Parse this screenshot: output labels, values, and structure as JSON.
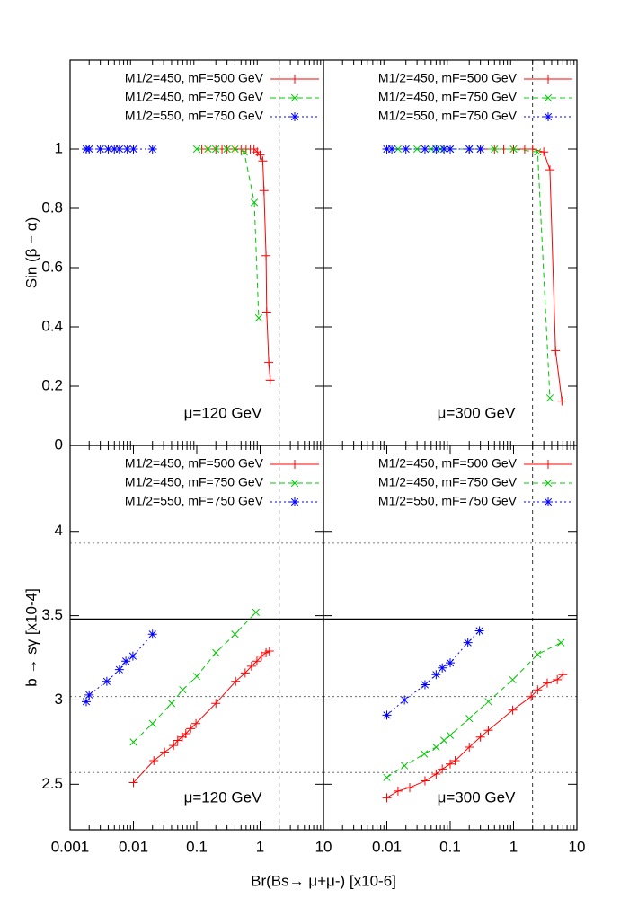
{
  "chart_data": [
    {
      "type": "line",
      "xlog": true,
      "xlim": [
        0.001,
        10
      ],
      "ylim": [
        0,
        1.3
      ],
      "yticks": [
        0,
        0.2,
        0.4,
        0.6,
        0.8,
        1
      ],
      "ylabel": "Sin (β − α)",
      "annotation": "μ=120 GeV",
      "vline": 2,
      "series": [
        {
          "name": "M1/2=450, mF=500 GeV",
          "color": "#ff0000",
          "marker": "plus",
          "dash": "none",
          "x": [
            0.12,
            0.15,
            0.2,
            0.25,
            0.3,
            0.4,
            0.5,
            0.6,
            0.7,
            0.8,
            0.9,
            1.0,
            1.1,
            1.15,
            1.24,
            1.27,
            1.37,
            1.44
          ],
          "values": [
            1,
            1,
            1,
            1,
            1,
            1,
            1,
            1,
            1,
            1,
            0.99,
            0.98,
            0.96,
            0.86,
            0.64,
            0.45,
            0.28,
            0.22
          ]
        },
        {
          "name": "M1/2=450, mF=750 GeV",
          "color": "#00c800",
          "marker": "cross",
          "dash": "6,4",
          "x": [
            0.1,
            0.15,
            0.2,
            0.3,
            0.4,
            0.56,
            0.81,
            0.95
          ],
          "values": [
            1,
            1,
            1,
            1,
            1,
            0.99,
            0.82,
            0.43
          ]
        },
        {
          "name": "M1/2=550, mF=750 GeV",
          "color": "#0000ff",
          "marker": "star",
          "dash": "2,3",
          "x": [
            0.0018,
            0.002,
            0.003,
            0.004,
            0.005,
            0.006,
            0.008,
            0.01,
            0.02
          ],
          "values": [
            1,
            1,
            1,
            1,
            1,
            1,
            1,
            1,
            1
          ]
        }
      ]
    },
    {
      "type": "line",
      "xlog": true,
      "xlim": [
        0.001,
        10
      ],
      "ylim": [
        0,
        1.3
      ],
      "annotation": "μ=300 GeV",
      "vline": 2,
      "series": [
        {
          "name": "M1/2=450, mF=500 GeV",
          "color": "#ff0000",
          "marker": "plus",
          "dash": "none",
          "x": [
            0.2,
            0.3,
            0.5,
            0.7,
            1,
            1.5,
            2,
            3,
            3.75,
            4.6,
            5.8
          ],
          "values": [
            1,
            1,
            1,
            1,
            1,
            1,
            1,
            0.99,
            0.93,
            0.32,
            0.15
          ]
        },
        {
          "name": "M1/2=450, mF=750 GeV",
          "color": "#00c800",
          "marker": "cross",
          "dash": "6,4",
          "x": [
            0.015,
            0.03,
            0.05,
            0.07,
            0.1,
            0.2,
            0.3,
            0.5,
            1,
            2.4,
            3.75
          ],
          "values": [
            1,
            1,
            1,
            1,
            1,
            1,
            1,
            1,
            1,
            0.99,
            0.16
          ]
        },
        {
          "name": "M1/2=550, mF=750 GeV",
          "color": "#0000ff",
          "marker": "star",
          "dash": "2,3",
          "x": [
            0.01,
            0.012,
            0.02,
            0.04,
            0.06,
            0.08,
            0.1,
            0.2,
            0.3
          ],
          "values": [
            1,
            1,
            1,
            1,
            1,
            1,
            1,
            1,
            1
          ]
        }
      ]
    },
    {
      "type": "line",
      "xlog": true,
      "xlim": [
        0.001,
        10
      ],
      "ylim": [
        2.23,
        4.51
      ],
      "xticks": [
        0.001,
        0.01,
        0.1,
        1,
        10
      ],
      "yticks": [
        2.5,
        3,
        3.5,
        4
      ],
      "ylabel": "b → sγ [x10-4]",
      "xlabel": "Br(Bs→ μ+μ-)  [x10-6]",
      "annotation": "μ=120 GeV",
      "vline": 2,
      "hlines": [
        3.93,
        3.48,
        3.02,
        2.57
      ],
      "hline_styles": [
        "dotted",
        "solid",
        "dotted",
        "dotted"
      ],
      "series": [
        {
          "name": "M1/2=450, mF=500 GeV",
          "color": "#ff0000",
          "marker": "plus",
          "dash": "none",
          "x": [
            0.01,
            0.021,
            0.031,
            0.043,
            0.05,
            0.059,
            0.067,
            0.08,
            0.097,
            0.2,
            0.41,
            0.58,
            0.73,
            0.89,
            1.05,
            1.24,
            1.4
          ],
          "values": [
            2.51,
            2.64,
            2.69,
            2.73,
            2.76,
            2.78,
            2.8,
            2.83,
            2.86,
            2.98,
            3.11,
            3.16,
            3.2,
            3.23,
            3.26,
            3.28,
            3.29
          ]
        },
        {
          "name": "M1/2=450, mF=750 GeV",
          "color": "#00c800",
          "marker": "cross",
          "dash": "6,4",
          "x": [
            0.01,
            0.02,
            0.04,
            0.06,
            0.1,
            0.2,
            0.4,
            0.86
          ],
          "values": [
            2.75,
            2.86,
            2.98,
            3.06,
            3.14,
            3.28,
            3.39,
            3.52
          ]
        },
        {
          "name": "M1/2=550, mF=750 GeV",
          "color": "#0000ff",
          "marker": "star",
          "dash": "2,3",
          "x": [
            0.0018,
            0.002,
            0.0038,
            0.006,
            0.0076,
            0.0098,
            0.02
          ],
          "values": [
            2.99,
            3.03,
            3.11,
            3.18,
            3.23,
            3.26,
            3.39
          ]
        }
      ]
    },
    {
      "type": "line",
      "xlog": true,
      "xlim": [
        0.001,
        10
      ],
      "ylim": [
        2.23,
        4.51
      ],
      "xticks": [
        0.01,
        0.1,
        1,
        10
      ],
      "annotation": "μ=300 GeV",
      "vline": 2,
      "hlines": [
        3.93,
        3.48,
        3.02,
        2.57
      ],
      "hline_styles": [
        "dotted",
        "solid",
        "dotted",
        "dotted"
      ],
      "series": [
        {
          "name": "M1/2=450, mF=500 GeV",
          "color": "#ff0000",
          "marker": "plus",
          "dash": "none",
          "x": [
            0.01,
            0.015,
            0.023,
            0.04,
            0.06,
            0.075,
            0.1,
            0.12,
            0.2,
            0.3,
            0.4,
            0.97,
            1.9,
            2.4,
            3.4,
            4.9,
            6
          ],
          "values": [
            2.42,
            2.46,
            2.48,
            2.52,
            2.56,
            2.59,
            2.62,
            2.64,
            2.72,
            2.78,
            2.82,
            2.94,
            3.02,
            3.06,
            3.1,
            3.12,
            3.15
          ]
        },
        {
          "name": "M1/2=450, mF=750 GeV",
          "color": "#00c800",
          "marker": "cross",
          "dash": "6,4",
          "x": [
            0.01,
            0.019,
            0.039,
            0.06,
            0.08,
            0.1,
            0.2,
            0.4,
            0.97,
            2.4,
            5.6
          ],
          "values": [
            2.54,
            2.61,
            2.68,
            2.72,
            2.76,
            2.79,
            2.89,
            2.99,
            3.12,
            3.27,
            3.34
          ]
        },
        {
          "name": "M1/2=550, mF=750 GeV",
          "color": "#0000ff",
          "marker": "star",
          "dash": "2,3",
          "x": [
            0.01,
            0.019,
            0.04,
            0.06,
            0.075,
            0.1,
            0.19,
            0.29
          ],
          "values": [
            2.91,
            3.0,
            3.09,
            3.15,
            3.19,
            3.22,
            3.34,
            3.41
          ]
        }
      ]
    }
  ]
}
